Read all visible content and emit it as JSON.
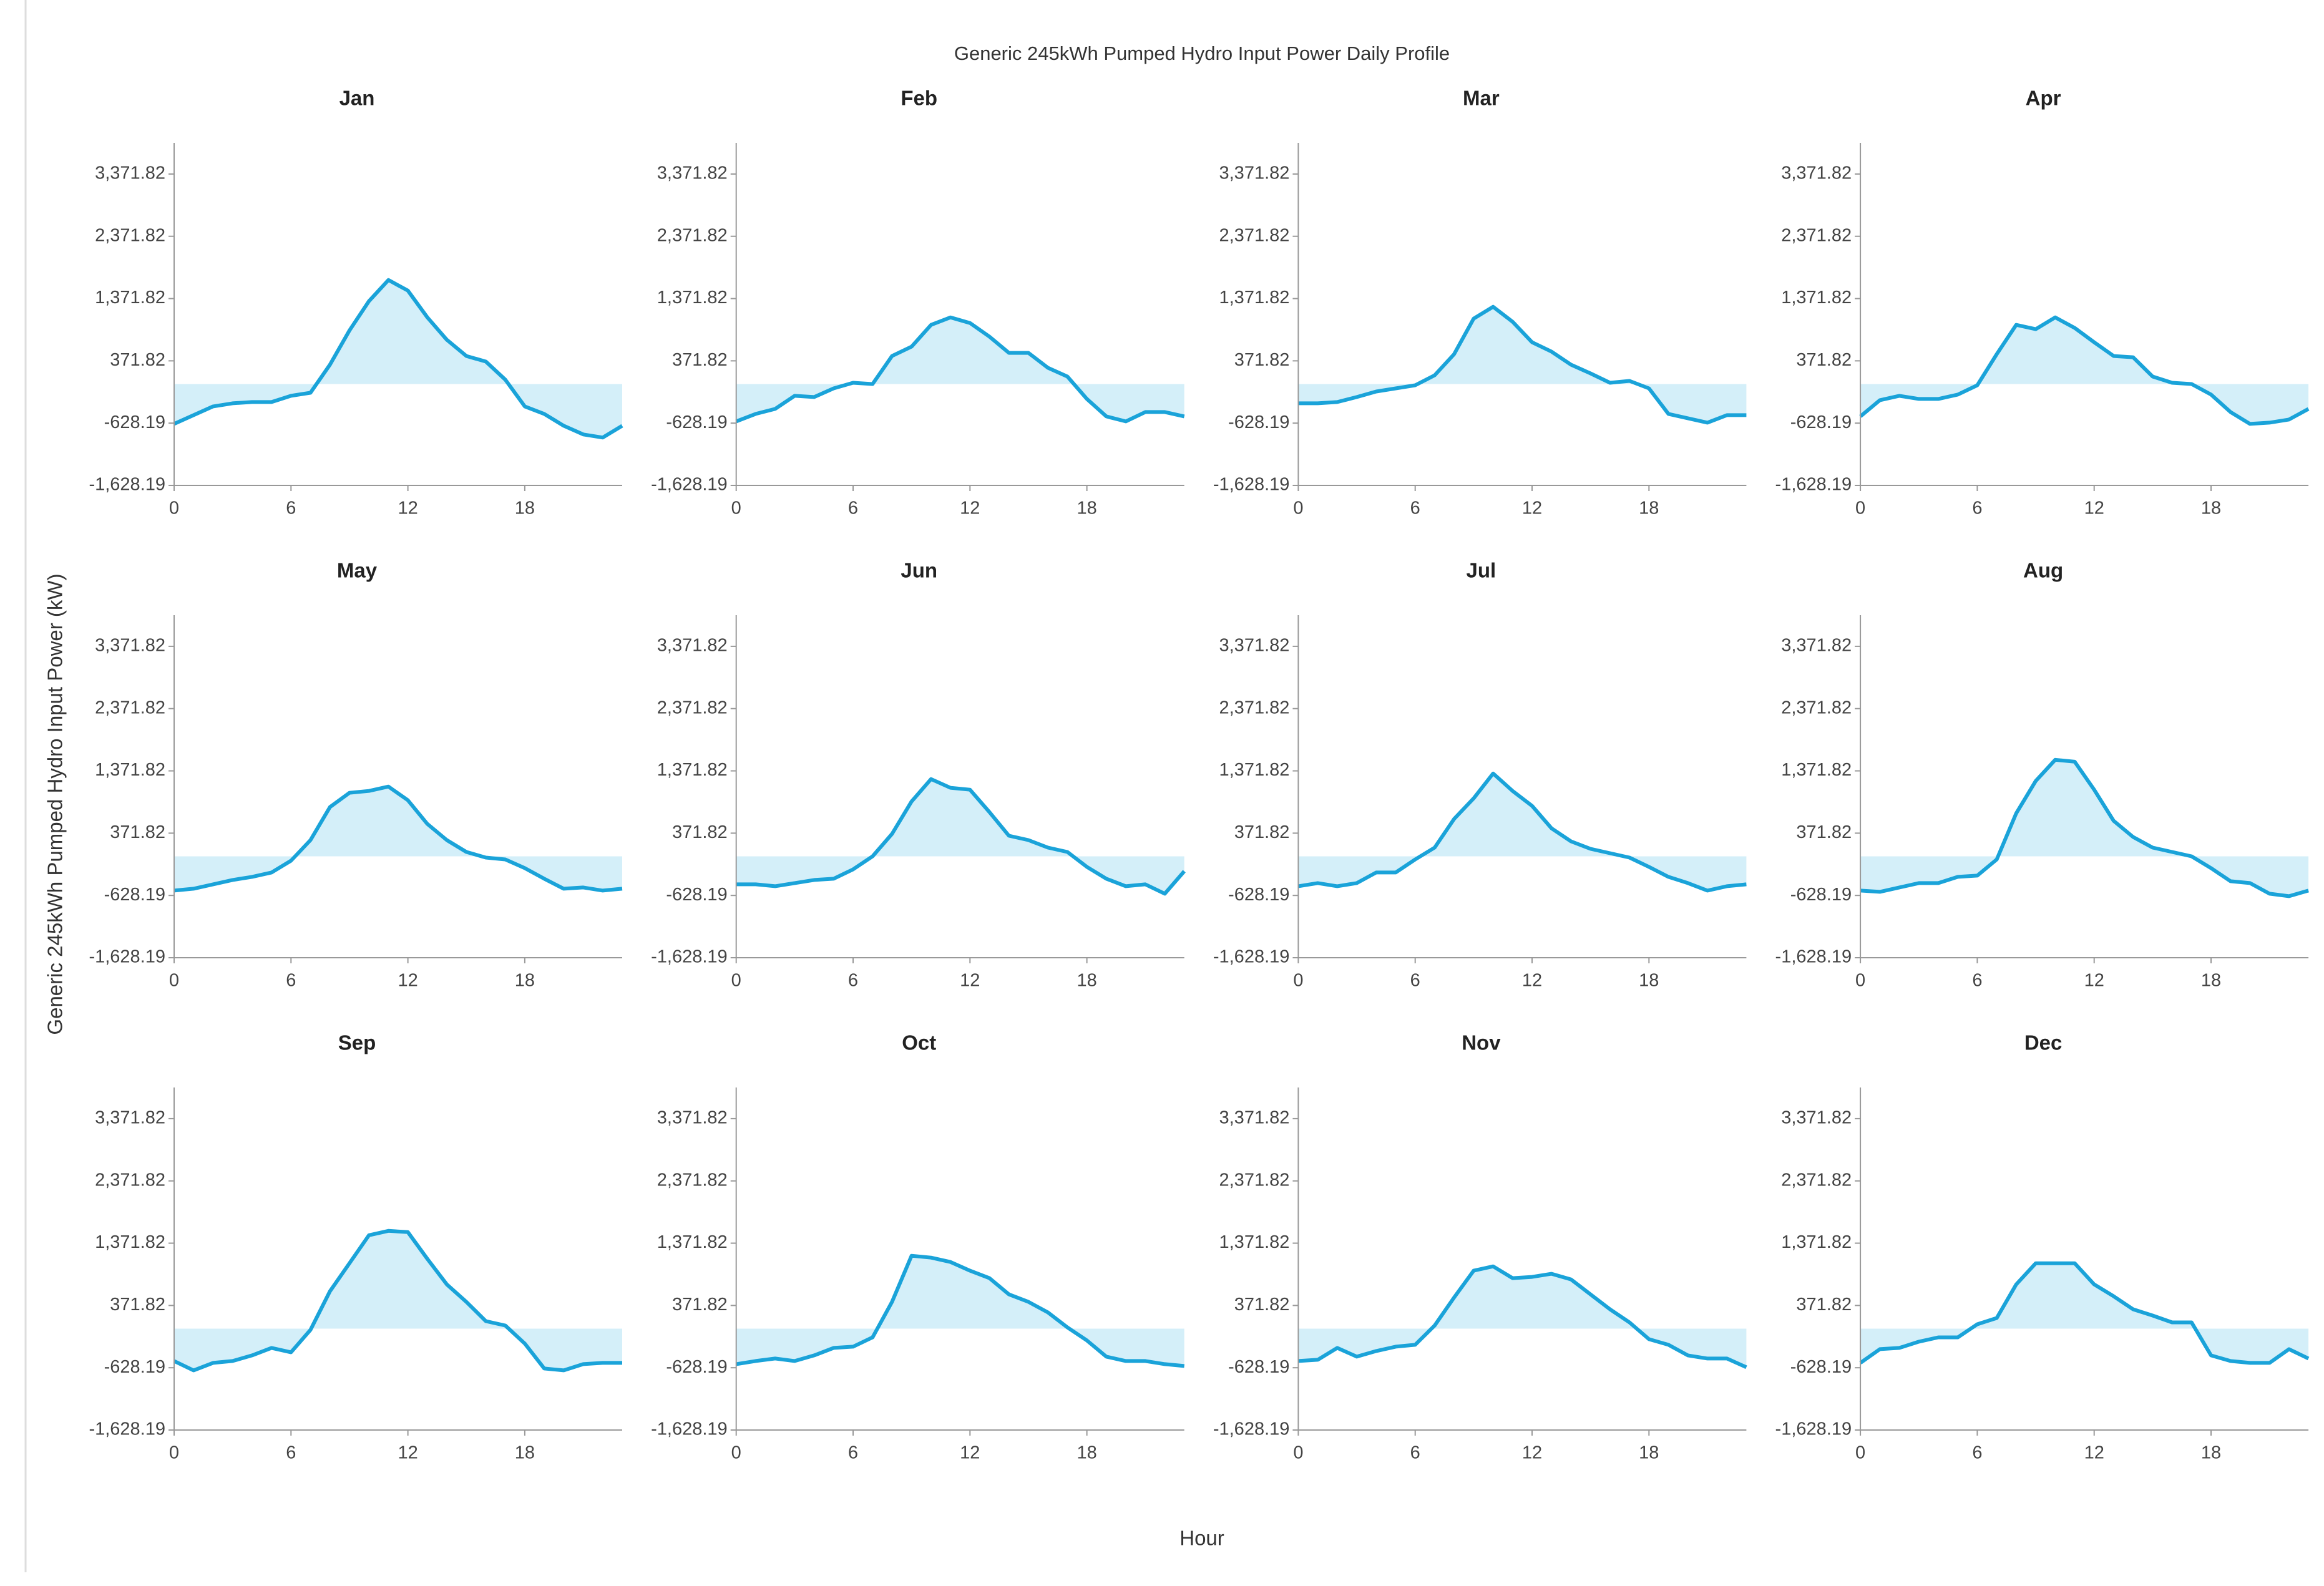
{
  "title": "Generic 245kWh Pumped Hydro Input Power Daily Profile",
  "ylabel": "Generic 245kWh Pumped Hydro Input Power (kW)",
  "xlabel": "Hour",
  "chart_data": [
    {
      "type": "area",
      "title": "Jan",
      "color": "#1aa3d9",
      "fill_color": "#d4eff9",
      "x": [
        0,
        1,
        2,
        3,
        4,
        5,
        6,
        7,
        8,
        9,
        10,
        11,
        12,
        13,
        14,
        15,
        16,
        17,
        18,
        19,
        20,
        21,
        22,
        23
      ],
      "values": [
        -640,
        -500,
        -360,
        -310,
        -290,
        -290,
        -190,
        -140,
        310,
        860,
        1330,
        1670,
        1500,
        1070,
        710,
        450,
        360,
        70,
        -360,
        -480,
        -670,
        -810,
        -860,
        -670
      ],
      "xlim": [
        0,
        23
      ],
      "xticks": [
        0,
        6,
        12,
        18
      ],
      "ylim": [
        -1628.19,
        3871.82
      ],
      "yticks": [
        {
          "value": -1628.19,
          "label": "-1,628.19"
        },
        {
          "value": -628.19,
          "label": "-628.19"
        },
        {
          "value": 371.82,
          "label": "371.82"
        },
        {
          "value": 1371.82,
          "label": "1,371.82"
        },
        {
          "value": 2371.82,
          "label": "2,371.82"
        },
        {
          "value": 3371.82,
          "label": "3,371.82"
        }
      ]
    },
    {
      "type": "area",
      "title": "Feb",
      "color": "#1aa3d9",
      "fill_color": "#d4eff9",
      "x": [
        0,
        1,
        2,
        3,
        4,
        5,
        6,
        7,
        8,
        9,
        10,
        11,
        12,
        13,
        14,
        15,
        16,
        17,
        18,
        19,
        20,
        21,
        22,
        23
      ],
      "values": [
        -600,
        -480,
        -400,
        -190,
        -210,
        -70,
        20,
        0,
        450,
        600,
        950,
        1070,
        980,
        760,
        500,
        500,
        260,
        120,
        -240,
        -520,
        -600,
        -450,
        -450,
        -520
      ],
      "xlim": [
        0,
        23
      ],
      "xticks": [
        0,
        6,
        12,
        18
      ],
      "ylim": [
        -1628.19,
        3871.82
      ],
      "yticks": [
        {
          "value": -1628.19,
          "label": "-1,628.19"
        },
        {
          "value": -628.19,
          "label": "-628.19"
        },
        {
          "value": 371.82,
          "label": "371.82"
        },
        {
          "value": 1371.82,
          "label": "1,371.82"
        },
        {
          "value": 2371.82,
          "label": "2,371.82"
        },
        {
          "value": 3371.82,
          "label": "3,371.82"
        }
      ]
    },
    {
      "type": "area",
      "title": "Mar",
      "color": "#1aa3d9",
      "fill_color": "#d4eff9",
      "x": [
        0,
        1,
        2,
        3,
        4,
        5,
        6,
        7,
        8,
        9,
        10,
        11,
        12,
        13,
        14,
        15,
        16,
        17,
        18,
        19,
        20,
        21,
        22,
        23
      ],
      "values": [
        -310,
        -310,
        -290,
        -210,
        -120,
        -70,
        -20,
        140,
        480,
        1050,
        1240,
        1000,
        670,
        520,
        310,
        170,
        20,
        50,
        -70,
        -480,
        -550,
        -620,
        -500,
        -500
      ],
      "xlim": [
        0,
        23
      ],
      "xticks": [
        0,
        6,
        12,
        18
      ],
      "ylim": [
        -1628.19,
        3871.82
      ],
      "yticks": [
        {
          "value": -1628.19,
          "label": "-1,628.19"
        },
        {
          "value": -628.19,
          "label": "-628.19"
        },
        {
          "value": 371.82,
          "label": "371.82"
        },
        {
          "value": 1371.82,
          "label": "1,371.82"
        },
        {
          "value": 2371.82,
          "label": "2,371.82"
        },
        {
          "value": 3371.82,
          "label": "3,371.82"
        }
      ]
    },
    {
      "type": "area",
      "title": "Apr",
      "color": "#1aa3d9",
      "fill_color": "#d4eff9",
      "x": [
        0,
        1,
        2,
        3,
        4,
        5,
        6,
        7,
        8,
        9,
        10,
        11,
        12,
        13,
        14,
        15,
        16,
        17,
        18,
        19,
        20,
        21,
        22,
        23
      ],
      "values": [
        -520,
        -260,
        -190,
        -240,
        -240,
        -170,
        -20,
        480,
        950,
        880,
        1070,
        900,
        670,
        450,
        430,
        120,
        20,
        0,
        -170,
        -450,
        -640,
        -620,
        -570,
        -400
      ],
      "xlim": [
        0,
        23
      ],
      "xticks": [
        0,
        6,
        12,
        18
      ],
      "ylim": [
        -1628.19,
        3871.82
      ],
      "yticks": [
        {
          "value": -1628.19,
          "label": "-1,628.19"
        },
        {
          "value": -628.19,
          "label": "-628.19"
        },
        {
          "value": 371.82,
          "label": "371.82"
        },
        {
          "value": 1371.82,
          "label": "1,371.82"
        },
        {
          "value": 2371.82,
          "label": "2,371.82"
        },
        {
          "value": 3371.82,
          "label": "3,371.82"
        }
      ]
    },
    {
      "type": "area",
      "title": "May",
      "color": "#1aa3d9",
      "fill_color": "#d4eff9",
      "x": [
        0,
        1,
        2,
        3,
        4,
        5,
        6,
        7,
        8,
        9,
        10,
        11,
        12,
        13,
        14,
        15,
        16,
        17,
        18,
        19,
        20,
        21,
        22,
        23
      ],
      "values": [
        -550,
        -520,
        -450,
        -380,
        -330,
        -260,
        -70,
        260,
        790,
        1020,
        1050,
        1120,
        900,
        520,
        260,
        70,
        -20,
        -50,
        -190,
        -360,
        -520,
        -500,
        -550,
        -520
      ],
      "xlim": [
        0,
        23
      ],
      "xticks": [
        0,
        6,
        12,
        18
      ],
      "ylim": [
        -1628.19,
        3871.82
      ],
      "yticks": [
        {
          "value": -1628.19,
          "label": "-1,628.19"
        },
        {
          "value": -628.19,
          "label": "-628.19"
        },
        {
          "value": 371.82,
          "label": "371.82"
        },
        {
          "value": 1371.82,
          "label": "1,371.82"
        },
        {
          "value": 2371.82,
          "label": "2,371.82"
        },
        {
          "value": 3371.82,
          "label": "3,371.82"
        }
      ]
    },
    {
      "type": "area",
      "title": "Jun",
      "color": "#1aa3d9",
      "fill_color": "#d4eff9",
      "x": [
        0,
        1,
        2,
        3,
        4,
        5,
        6,
        7,
        8,
        9,
        10,
        11,
        12,
        13,
        14,
        15,
        16,
        17,
        18,
        19,
        20,
        21,
        22,
        23
      ],
      "values": [
        -450,
        -450,
        -480,
        -430,
        -380,
        -360,
        -210,
        0,
        360,
        880,
        1240,
        1100,
        1070,
        710,
        330,
        260,
        140,
        70,
        -170,
        -360,
        -480,
        -450,
        -600,
        -240
      ],
      "xlim": [
        0,
        23
      ],
      "xticks": [
        0,
        6,
        12,
        18
      ],
      "ylim": [
        -1628.19,
        3871.82
      ],
      "yticks": [
        {
          "value": -1628.19,
          "label": "-1,628.19"
        },
        {
          "value": -628.19,
          "label": "-628.19"
        },
        {
          "value": 371.82,
          "label": "371.82"
        },
        {
          "value": 1371.82,
          "label": "1,371.82"
        },
        {
          "value": 2371.82,
          "label": "2,371.82"
        },
        {
          "value": 3371.82,
          "label": "3,371.82"
        }
      ]
    },
    {
      "type": "area",
      "title": "Jul",
      "color": "#1aa3d9",
      "fill_color": "#d4eff9",
      "x": [
        0,
        1,
        2,
        3,
        4,
        5,
        6,
        7,
        8,
        9,
        10,
        11,
        12,
        13,
        14,
        15,
        16,
        17,
        18,
        19,
        20,
        21,
        22,
        23
      ],
      "values": [
        -480,
        -430,
        -480,
        -430,
        -260,
        -260,
        -50,
        140,
        600,
        930,
        1330,
        1050,
        810,
        450,
        240,
        120,
        50,
        -20,
        -170,
        -330,
        -430,
        -550,
        -480,
        -450
      ],
      "xlim": [
        0,
        23
      ],
      "xticks": [
        0,
        6,
        12,
        18
      ],
      "ylim": [
        -1628.19,
        3871.82
      ],
      "yticks": [
        {
          "value": -1628.19,
          "label": "-1,628.19"
        },
        {
          "value": -628.19,
          "label": "-628.19"
        },
        {
          "value": 371.82,
          "label": "371.82"
        },
        {
          "value": 1371.82,
          "label": "1,371.82"
        },
        {
          "value": 2371.82,
          "label": "2,371.82"
        },
        {
          "value": 3371.82,
          "label": "3,371.82"
        }
      ]
    },
    {
      "type": "area",
      "title": "Aug",
      "color": "#1aa3d9",
      "fill_color": "#d4eff9",
      "x": [
        0,
        1,
        2,
        3,
        4,
        5,
        6,
        7,
        8,
        9,
        10,
        11,
        12,
        13,
        14,
        15,
        16,
        17,
        18,
        19,
        20,
        21,
        22,
        23
      ],
      "values": [
        -550,
        -570,
        -500,
        -430,
        -430,
        -330,
        -310,
        -50,
        690,
        1210,
        1550,
        1520,
        1070,
        570,
        310,
        140,
        70,
        0,
        -190,
        -400,
        -430,
        -600,
        -640,
        -550
      ],
      "xlim": [
        0,
        23
      ],
      "xticks": [
        0,
        6,
        12,
        18
      ],
      "ylim": [
        -1628.19,
        3871.82
      ],
      "yticks": [
        {
          "value": -1628.19,
          "label": "-1,628.19"
        },
        {
          "value": -628.19,
          "label": "-628.19"
        },
        {
          "value": 371.82,
          "label": "371.82"
        },
        {
          "value": 1371.82,
          "label": "1,371.82"
        },
        {
          "value": 2371.82,
          "label": "2,371.82"
        },
        {
          "value": 3371.82,
          "label": "3,371.82"
        }
      ]
    },
    {
      "type": "area",
      "title": "Sep",
      "color": "#1aa3d9",
      "fill_color": "#d4eff9",
      "x": [
        0,
        1,
        2,
        3,
        4,
        5,
        6,
        7,
        8,
        9,
        10,
        11,
        12,
        13,
        14,
        15,
        16,
        17,
        18,
        19,
        20,
        21,
        22,
        23
      ],
      "values": [
        -520,
        -670,
        -550,
        -520,
        -430,
        -310,
        -380,
        -20,
        600,
        1050,
        1500,
        1570,
        1550,
        1120,
        710,
        430,
        120,
        50,
        -240,
        -640,
        -670,
        -570,
        -550,
        -550
      ],
      "xlim": [
        0,
        23
      ],
      "xticks": [
        0,
        6,
        12,
        18
      ],
      "ylim": [
        -1628.19,
        3871.82
      ],
      "yticks": [
        {
          "value": -1628.19,
          "label": "-1,628.19"
        },
        {
          "value": -628.19,
          "label": "-628.19"
        },
        {
          "value": 371.82,
          "label": "371.82"
        },
        {
          "value": 1371.82,
          "label": "1,371.82"
        },
        {
          "value": 2371.82,
          "label": "2,371.82"
        },
        {
          "value": 3371.82,
          "label": "3,371.82"
        }
      ]
    },
    {
      "type": "area",
      "title": "Oct",
      "color": "#1aa3d9",
      "fill_color": "#d4eff9",
      "x": [
        0,
        1,
        2,
        3,
        4,
        5,
        6,
        7,
        8,
        9,
        10,
        11,
        12,
        13,
        14,
        15,
        16,
        17,
        18,
        19,
        20,
        21,
        22,
        23
      ],
      "values": [
        -570,
        -520,
        -480,
        -520,
        -430,
        -310,
        -290,
        -140,
        430,
        1170,
        1140,
        1070,
        930,
        810,
        550,
        430,
        260,
        20,
        -190,
        -450,
        -520,
        -520,
        -570,
        -600
      ],
      "xlim": [
        0,
        23
      ],
      "xticks": [
        0,
        6,
        12,
        18
      ],
      "ylim": [
        -1628.19,
        3871.82
      ],
      "yticks": [
        {
          "value": -1628.19,
          "label": "-1,628.19"
        },
        {
          "value": -628.19,
          "label": "-628.19"
        },
        {
          "value": 371.82,
          "label": "371.82"
        },
        {
          "value": 1371.82,
          "label": "1,371.82"
        },
        {
          "value": 2371.82,
          "label": "2,371.82"
        },
        {
          "value": 3371.82,
          "label": "3,371.82"
        }
      ]
    },
    {
      "type": "area",
      "title": "Nov",
      "color": "#1aa3d9",
      "fill_color": "#d4eff9",
      "x": [
        0,
        1,
        2,
        3,
        4,
        5,
        6,
        7,
        8,
        9,
        10,
        11,
        12,
        13,
        14,
        15,
        16,
        17,
        18,
        19,
        20,
        21,
        22,
        23
      ],
      "values": [
        -520,
        -500,
        -310,
        -450,
        -360,
        -290,
        -260,
        50,
        500,
        930,
        1000,
        810,
        830,
        880,
        790,
        550,
        310,
        100,
        -170,
        -260,
        -430,
        -480,
        -480,
        -620
      ],
      "xlim": [
        0,
        23
      ],
      "xticks": [
        0,
        6,
        12,
        18
      ],
      "ylim": [
        -1628.19,
        3871.82
      ],
      "yticks": [
        {
          "value": -1628.19,
          "label": "-1,628.19"
        },
        {
          "value": -628.19,
          "label": "-628.19"
        },
        {
          "value": 371.82,
          "label": "371.82"
        },
        {
          "value": 1371.82,
          "label": "1,371.82"
        },
        {
          "value": 2371.82,
          "label": "2,371.82"
        },
        {
          "value": 3371.82,
          "label": "3,371.82"
        }
      ]
    },
    {
      "type": "area",
      "title": "Dec",
      "color": "#1aa3d9",
      "fill_color": "#d4eff9",
      "x": [
        0,
        1,
        2,
        3,
        4,
        5,
        6,
        7,
        8,
        9,
        10,
        11,
        12,
        13,
        14,
        15,
        16,
        17,
        18,
        19,
        20,
        21,
        22,
        23
      ],
      "values": [
        -550,
        -330,
        -310,
        -210,
        -140,
        -140,
        70,
        170,
        710,
        1050,
        1050,
        1050,
        710,
        520,
        310,
        210,
        100,
        100,
        -430,
        -520,
        -550,
        -550,
        -330,
        -480
      ],
      "xlim": [
        0,
        23
      ],
      "xticks": [
        0,
        6,
        12,
        18
      ],
      "ylim": [
        -1628.19,
        3871.82
      ],
      "yticks": [
        {
          "value": -1628.19,
          "label": "-1,628.19"
        },
        {
          "value": -628.19,
          "label": "-628.19"
        },
        {
          "value": 371.82,
          "label": "371.82"
        },
        {
          "value": 1371.82,
          "label": "1,371.82"
        },
        {
          "value": 2371.82,
          "label": "2,371.82"
        },
        {
          "value": 3371.82,
          "label": "3,371.82"
        }
      ]
    }
  ]
}
